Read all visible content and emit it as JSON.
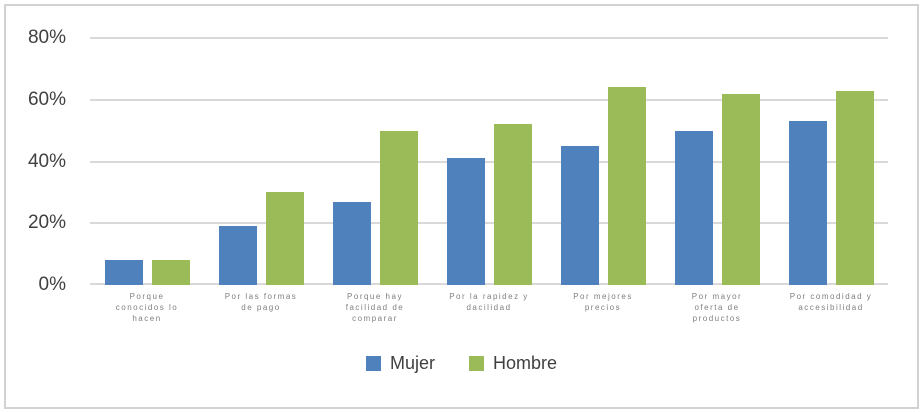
{
  "chart_data": {
    "type": "bar",
    "title": "",
    "categories": [
      "Porque\nconocidos lo\nhacen",
      "Por las formas\nde pago",
      "Porque hay\nfacilidad de\ncomparar",
      "Por la rapidez y\ndacilidad",
      "Por mejores\nprecios",
      "Por mayor\noferta de\nproductos",
      "Por comodidad y\naccesibilidad"
    ],
    "series": [
      {
        "name": "Mujer",
        "color": "#4F81BD",
        "values": [
          8,
          19,
          27,
          41,
          45,
          50,
          53
        ]
      },
      {
        "name": "Hombre",
        "color": "#9BBB59",
        "values": [
          8,
          30,
          50,
          52,
          64,
          62,
          63
        ]
      }
    ],
    "xlabel": "",
    "ylabel": "",
    "ylim": [
      0,
      80
    ],
    "yticks": [
      "0%",
      "20%",
      "40%",
      "60%",
      "80%"
    ],
    "grid": true,
    "legend_position": "bottom",
    "colors": {
      "gridline": "#d9d9d9",
      "axis_text": "#404040",
      "category_text": "#7f7f7f",
      "frame_border": "#d2d2d2",
      "background": "#ffffff"
    }
  }
}
